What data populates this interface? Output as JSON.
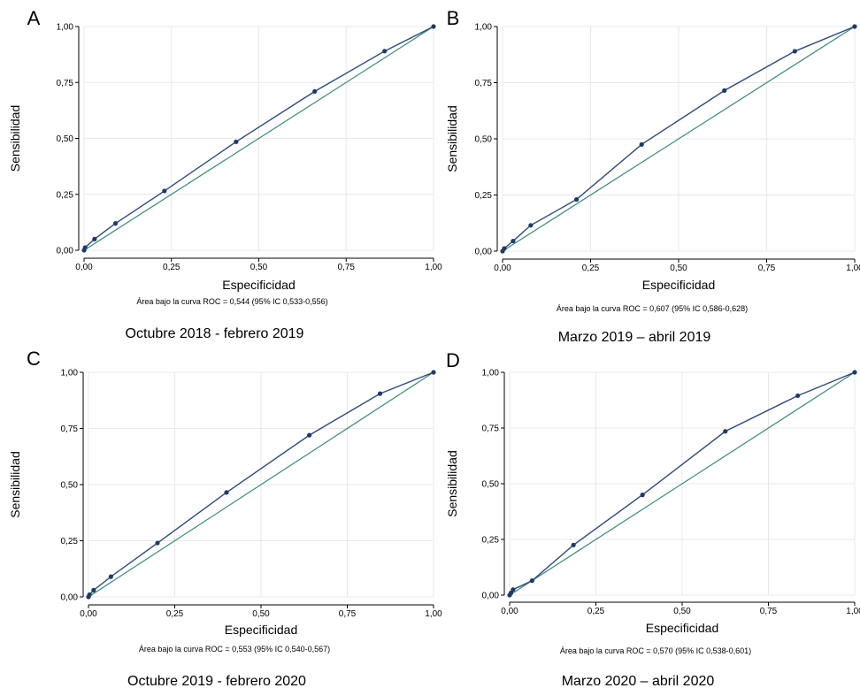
{
  "colors": {
    "roc_line": "#2d4a7a",
    "roc_marker": "#1f3a66",
    "reference_line": "#3a8a7a",
    "grid": "#e8e8e8",
    "axis": "#000000"
  },
  "chart_data": [
    {
      "panel": "A",
      "type": "line",
      "xlabel": "Especificidad",
      "ylabel": "Sensibilidad",
      "xlim": [
        0,
        1
      ],
      "ylim": [
        0,
        1
      ],
      "xticks": [
        "0,00",
        "0,25",
        "0,50",
        "0,75",
        "1,00"
      ],
      "yticks": [
        "0,00",
        "0,25",
        "0,50",
        "0,75",
        "1,00"
      ],
      "grid": true,
      "note": "Área bajo la curva ROC = 0,544 (95% IC 0,533-0,556)",
      "subtitle": "Octubre 2018 - febrero 2019",
      "series": [
        {
          "kind": "roc",
          "x": [
            0.0,
            0.003,
            0.03,
            0.09,
            0.23,
            0.435,
            0.66,
            0.86,
            1.0
          ],
          "y": [
            0.0,
            0.012,
            0.05,
            0.12,
            0.265,
            0.485,
            0.71,
            0.89,
            1.0
          ]
        },
        {
          "kind": "reference",
          "x": [
            0,
            1
          ],
          "y": [
            0,
            1
          ]
        }
      ]
    },
    {
      "panel": "B",
      "type": "line",
      "xlabel": "Especificidad",
      "ylabel": "Sensibilidad",
      "xlim": [
        0,
        1
      ],
      "ylim": [
        0,
        1
      ],
      "xticks": [
        "0,00",
        "0,25",
        "0,50",
        "0,75",
        "1,00"
      ],
      "yticks": [
        "0,00",
        "0,25",
        "0,50",
        "0,75",
        "1,00"
      ],
      "grid": true,
      "note": "Área bajo la curva ROC = 0,607 (95% IC 0,586-0,628)",
      "subtitle": "Marzo 2019 – abril 2019",
      "series": [
        {
          "kind": "roc",
          "x": [
            0.0,
            0.005,
            0.03,
            0.08,
            0.21,
            0.395,
            0.63,
            0.83,
            1.0
          ],
          "y": [
            0.0,
            0.012,
            0.045,
            0.115,
            0.23,
            0.475,
            0.715,
            0.89,
            1.0
          ]
        },
        {
          "kind": "reference",
          "x": [
            0,
            1
          ],
          "y": [
            0,
            1
          ]
        }
      ]
    },
    {
      "panel": "C",
      "type": "line",
      "xlabel": "Especificidad",
      "ylabel": "Sensibilidad",
      "xlim": [
        0,
        1
      ],
      "ylim": [
        0,
        1
      ],
      "xticks": [
        "0,00",
        "0,25",
        "0,50",
        "0,75",
        "1,00"
      ],
      "yticks": [
        "0,00",
        "0,25",
        "0,50",
        "0,75",
        "1,00"
      ],
      "grid": true,
      "note": "Área bajo la curva ROC = 0,553 (95% IC 0,540-0,567)",
      "subtitle": "Octubre 2019 - febrero 2020",
      "series": [
        {
          "kind": "roc",
          "x": [
            0.0,
            0.003,
            0.015,
            0.065,
            0.2,
            0.4,
            0.64,
            0.845,
            1.0
          ],
          "y": [
            0.0,
            0.01,
            0.03,
            0.09,
            0.24,
            0.465,
            0.72,
            0.905,
            1.0
          ]
        },
        {
          "kind": "reference",
          "x": [
            0,
            1
          ],
          "y": [
            0,
            1
          ]
        }
      ]
    },
    {
      "panel": "D",
      "type": "line",
      "xlabel": "Especificidad",
      "ylabel": "Sensibilidad",
      "xlim": [
        0,
        1
      ],
      "ylim": [
        0,
        1
      ],
      "xticks": [
        "0,00",
        "0,25",
        "0,50",
        "0,75",
        "1,00"
      ],
      "yticks": [
        "0,00",
        "0,25",
        "0,50",
        "0,75",
        "1,00"
      ],
      "grid": true,
      "note": "Área bajo la curva ROC = 0,570 (95% IC 0,538-0,601)",
      "subtitle": "Marzo 2020 – abril 2020",
      "series": [
        {
          "kind": "roc",
          "x": [
            0.0,
            0.004,
            0.01,
            0.065,
            0.185,
            0.385,
            0.625,
            0.835,
            1.0
          ],
          "y": [
            0.0,
            0.01,
            0.025,
            0.065,
            0.225,
            0.45,
            0.735,
            0.895,
            1.0
          ]
        },
        {
          "kind": "reference",
          "x": [
            0,
            1
          ],
          "y": [
            0,
            1
          ]
        }
      ]
    }
  ]
}
